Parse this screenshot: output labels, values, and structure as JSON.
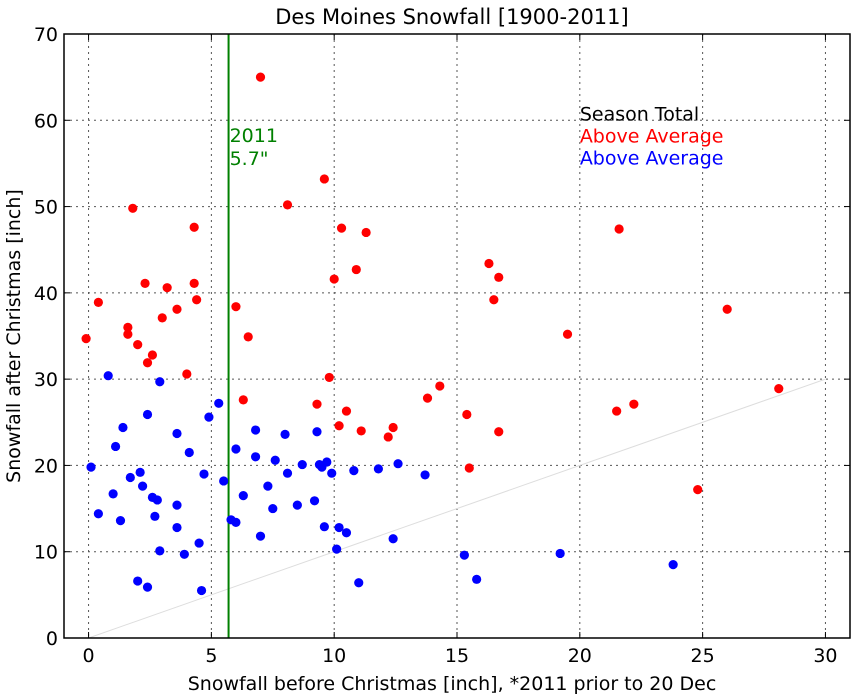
{
  "chart_data": {
    "type": "scatter",
    "title": "Des Moines Snowfall [1900-2011]",
    "xlabel": "Snowfall before Christmas [inch], *2011 prior to 20 Dec",
    "ylabel": "Snowfall after Christmas [inch]",
    "xlim": [
      -1,
      31
    ],
    "ylim": [
      0,
      70
    ],
    "xticks": [
      "0",
      "5",
      "10",
      "15",
      "20",
      "25",
      "30"
    ],
    "yticks": [
      "0",
      "10",
      "20",
      "30",
      "40",
      "50",
      "60",
      "70"
    ],
    "grid": true,
    "legend_position": "top-right",
    "legend": [
      {
        "label": "Season Total",
        "color": "#000000"
      },
      {
        "label": "Above Average",
        "color": "#ff0000"
      },
      {
        "label": "Above Average",
        "color": "#0000ff"
      }
    ],
    "reference_line": {
      "x": 5.7,
      "label_year": "2011",
      "label_value": "5.7\"",
      "color": "#008000"
    },
    "average_line": {
      "from": [
        0,
        0
      ],
      "to": [
        30,
        30
      ],
      "color": "#dddddd"
    },
    "series": [
      {
        "color": "#ff0000",
        "points": [
          [
            -0.1,
            34.7
          ],
          [
            0.4,
            38.9
          ],
          [
            1.6,
            36.0
          ],
          [
            1.6,
            35.2
          ],
          [
            1.8,
            49.8
          ],
          [
            2.0,
            34.0
          ],
          [
            2.3,
            41.1
          ],
          [
            2.4,
            31.9
          ],
          [
            2.6,
            32.8
          ],
          [
            3.0,
            37.1
          ],
          [
            3.2,
            40.6
          ],
          [
            3.6,
            38.1
          ],
          [
            4.0,
            30.6
          ],
          [
            4.3,
            41.1
          ],
          [
            4.3,
            47.6
          ],
          [
            4.4,
            39.2
          ],
          [
            6.0,
            38.4
          ],
          [
            6.3,
            27.6
          ],
          [
            6.5,
            34.9
          ],
          [
            7.0,
            65.0
          ],
          [
            8.1,
            50.2
          ],
          [
            9.3,
            27.1
          ],
          [
            9.6,
            53.2
          ],
          [
            9.8,
            30.2
          ],
          [
            10.0,
            41.6
          ],
          [
            10.2,
            24.6
          ],
          [
            10.3,
            47.5
          ],
          [
            10.5,
            26.3
          ],
          [
            10.9,
            42.7
          ],
          [
            11.1,
            24.0
          ],
          [
            11.3,
            47.0
          ],
          [
            12.2,
            23.3
          ],
          [
            12.4,
            24.4
          ],
          [
            13.8,
            27.8
          ],
          [
            14.3,
            29.2
          ],
          [
            15.4,
            25.9
          ],
          [
            15.5,
            19.7
          ],
          [
            16.3,
            43.4
          ],
          [
            16.5,
            39.2
          ],
          [
            16.7,
            41.8
          ],
          [
            16.7,
            23.9
          ],
          [
            19.5,
            35.2
          ],
          [
            21.5,
            26.3
          ],
          [
            21.6,
            47.4
          ],
          [
            22.2,
            27.1
          ],
          [
            24.8,
            17.2
          ],
          [
            26.0,
            38.1
          ],
          [
            28.1,
            28.9
          ]
        ]
      },
      {
        "color": "#0000ff",
        "points": [
          [
            0.1,
            19.8
          ],
          [
            0.4,
            14.4
          ],
          [
            0.8,
            30.4
          ],
          [
            1.0,
            16.7
          ],
          [
            1.1,
            22.2
          ],
          [
            1.3,
            13.6
          ],
          [
            1.4,
            24.4
          ],
          [
            1.7,
            18.6
          ],
          [
            2.0,
            6.6
          ],
          [
            2.1,
            19.2
          ],
          [
            2.2,
            17.6
          ],
          [
            2.4,
            25.9
          ],
          [
            2.4,
            5.9
          ],
          [
            2.6,
            16.3
          ],
          [
            2.7,
            14.1
          ],
          [
            2.8,
            16.0
          ],
          [
            2.9,
            29.7
          ],
          [
            2.9,
            10.1
          ],
          [
            3.6,
            23.7
          ],
          [
            3.6,
            15.4
          ],
          [
            3.6,
            12.8
          ],
          [
            3.9,
            9.7
          ],
          [
            4.1,
            21.5
          ],
          [
            4.5,
            11.0
          ],
          [
            4.6,
            5.5
          ],
          [
            4.7,
            19.0
          ],
          [
            4.9,
            25.6
          ],
          [
            5.3,
            27.2
          ],
          [
            5.5,
            18.2
          ],
          [
            5.8,
            13.7
          ],
          [
            6.0,
            13.4
          ],
          [
            6.0,
            21.9
          ],
          [
            6.3,
            16.5
          ],
          [
            6.8,
            24.1
          ],
          [
            6.8,
            21.0
          ],
          [
            7.0,
            11.8
          ],
          [
            7.3,
            17.6
          ],
          [
            7.5,
            15.0
          ],
          [
            7.6,
            20.6
          ],
          [
            8.0,
            23.6
          ],
          [
            8.1,
            19.1
          ],
          [
            8.5,
            15.4
          ],
          [
            8.7,
            20.1
          ],
          [
            9.2,
            15.9
          ],
          [
            9.3,
            23.9
          ],
          [
            9.4,
            20.1
          ],
          [
            9.5,
            19.8
          ],
          [
            9.6,
            12.9
          ],
          [
            9.7,
            20.4
          ],
          [
            9.9,
            19.1
          ],
          [
            10.1,
            10.3
          ],
          [
            10.2,
            12.8
          ],
          [
            10.5,
            12.2
          ],
          [
            10.8,
            19.4
          ],
          [
            11.0,
            6.4
          ],
          [
            11.8,
            19.6
          ],
          [
            12.4,
            11.5
          ],
          [
            12.6,
            20.2
          ],
          [
            13.7,
            18.9
          ],
          [
            15.3,
            9.6
          ],
          [
            15.8,
            6.8
          ],
          [
            19.2,
            9.8
          ],
          [
            23.8,
            8.5
          ]
        ]
      }
    ]
  }
}
